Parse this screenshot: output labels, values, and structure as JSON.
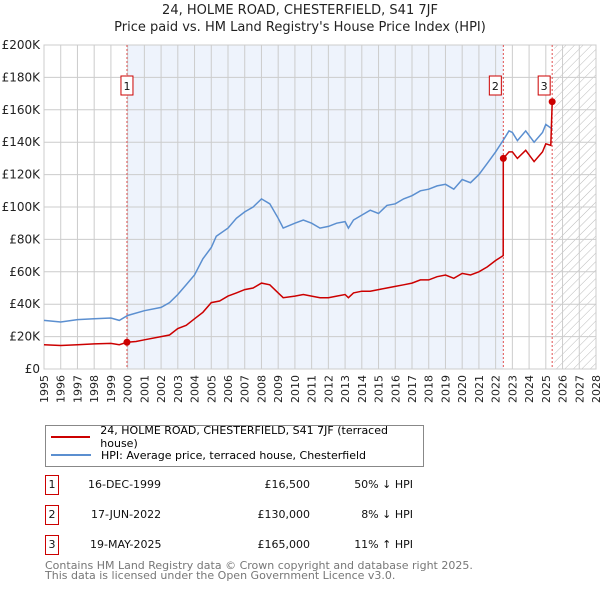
{
  "chart_data": {
    "type": "line",
    "title": "24, HOLME ROAD, CHESTERFIELD, S41 7JF",
    "subtitle": "Price paid vs. HM Land Registry's House Price Index (HPI)",
    "xlim": [
      1995,
      2028
    ],
    "ylim": [
      0,
      200000
    ],
    "x_ticks": [
      "1995",
      "1996",
      "1997",
      "1998",
      "1999",
      "2000",
      "2001",
      "2002",
      "2003",
      "2004",
      "2005",
      "2006",
      "2007",
      "2008",
      "2009",
      "2010",
      "2011",
      "2012",
      "2013",
      "2014",
      "2015",
      "2016",
      "2017",
      "2018",
      "2019",
      "2020",
      "2021",
      "2022",
      "2023",
      "2024",
      "2025",
      "2026",
      "2027",
      "2028"
    ],
    "y_ticks": [
      {
        "v": 0,
        "label": "£0"
      },
      {
        "v": 20000,
        "label": "£20K"
      },
      {
        "v": 40000,
        "label": "£40K"
      },
      {
        "v": 60000,
        "label": "£60K"
      },
      {
        "v": 80000,
        "label": "£80K"
      },
      {
        "v": 100000,
        "label": "£100K"
      },
      {
        "v": 120000,
        "label": "£120K"
      },
      {
        "v": 140000,
        "label": "£140K"
      },
      {
        "v": 160000,
        "label": "£160K"
      },
      {
        "v": 180000,
        "label": "£180K"
      },
      {
        "v": 200000,
        "label": "£200K"
      }
    ],
    "grid": true,
    "shaded_range": [
      2000.0,
      2022.46
    ],
    "hatched_from": 2025.5,
    "series": [
      {
        "name": "24, HOLME ROAD, CHESTERFIELD, S41 7JF (terraced house)",
        "color": "#cc0000",
        "points": [
          [
            1995,
            15
          ],
          [
            1996,
            14.5
          ],
          [
            1997,
            15
          ],
          [
            1998,
            15.5
          ],
          [
            1999,
            15.8
          ],
          [
            1999.5,
            15
          ],
          [
            1999.96,
            16.5
          ],
          [
            2000.5,
            17
          ],
          [
            2001,
            18
          ],
          [
            2002,
            20
          ],
          [
            2002.5,
            21
          ],
          [
            2003,
            25
          ],
          [
            2003.5,
            27
          ],
          [
            2004,
            31
          ],
          [
            2004.5,
            35
          ],
          [
            2005,
            41
          ],
          [
            2005.5,
            42
          ],
          [
            2006,
            45
          ],
          [
            2006.5,
            47
          ],
          [
            2007,
            49
          ],
          [
            2007.5,
            50
          ],
          [
            2008,
            53
          ],
          [
            2008.5,
            52
          ],
          [
            2009,
            47
          ],
          [
            2009.3,
            44
          ],
          [
            2010,
            45
          ],
          [
            2010.5,
            46
          ],
          [
            2011,
            45
          ],
          [
            2011.5,
            44
          ],
          [
            2012,
            44
          ],
          [
            2012.5,
            45
          ],
          [
            2013,
            46
          ],
          [
            2013.2,
            44
          ],
          [
            2013.5,
            47
          ],
          [
            2014,
            48
          ],
          [
            2014.5,
            48
          ],
          [
            2015,
            49
          ],
          [
            2015.5,
            50
          ],
          [
            2016,
            51
          ],
          [
            2016.5,
            52
          ],
          [
            2017,
            53
          ],
          [
            2017.5,
            55
          ],
          [
            2018,
            55
          ],
          [
            2018.5,
            57
          ],
          [
            2019,
            58
          ],
          [
            2019.5,
            56
          ],
          [
            2020,
            59
          ],
          [
            2020.5,
            58
          ],
          [
            2021,
            60
          ],
          [
            2021.5,
            63
          ],
          [
            2022,
            67
          ],
          [
            2022.45,
            70
          ],
          [
            2022.46,
            130
          ],
          [
            2022.8,
            134
          ],
          [
            2023,
            134
          ],
          [
            2023.3,
            130
          ],
          [
            2023.8,
            135
          ],
          [
            2024.3,
            128
          ],
          [
            2024.8,
            134
          ],
          [
            2025,
            139
          ],
          [
            2025.3,
            138
          ],
          [
            2025.38,
            165
          ]
        ]
      },
      {
        "name": "HPI: Average price, terraced house, Chesterfield",
        "color": "#5b8fd0",
        "points": [
          [
            1995,
            30
          ],
          [
            1996,
            29
          ],
          [
            1997,
            30.5
          ],
          [
            1998,
            31
          ],
          [
            1999,
            31.5
          ],
          [
            1999.5,
            30
          ],
          [
            2000,
            33
          ],
          [
            2001,
            36
          ],
          [
            2002,
            38
          ],
          [
            2002.5,
            41
          ],
          [
            2003,
            46
          ],
          [
            2003.5,
            52
          ],
          [
            2004,
            58
          ],
          [
            2004.5,
            68
          ],
          [
            2005,
            75
          ],
          [
            2005.3,
            82
          ],
          [
            2006,
            87
          ],
          [
            2006.5,
            93
          ],
          [
            2007,
            97
          ],
          [
            2007.5,
            100
          ],
          [
            2008,
            105
          ],
          [
            2008.5,
            102
          ],
          [
            2009,
            93
          ],
          [
            2009.3,
            87
          ],
          [
            2010,
            90
          ],
          [
            2010.5,
            92
          ],
          [
            2011,
            90
          ],
          [
            2011.5,
            87
          ],
          [
            2012,
            88
          ],
          [
            2012.5,
            90
          ],
          [
            2013,
            91
          ],
          [
            2013.2,
            87
          ],
          [
            2013.5,
            92
          ],
          [
            2014,
            95
          ],
          [
            2014.5,
            98
          ],
          [
            2015,
            96
          ],
          [
            2015.5,
            101
          ],
          [
            2016,
            102
          ],
          [
            2016.5,
            105
          ],
          [
            2017,
            107
          ],
          [
            2017.5,
            110
          ],
          [
            2018,
            111
          ],
          [
            2018.5,
            113
          ],
          [
            2019,
            114
          ],
          [
            2019.5,
            111
          ],
          [
            2020,
            117
          ],
          [
            2020.5,
            115
          ],
          [
            2021,
            120
          ],
          [
            2021.5,
            127
          ],
          [
            2022,
            134
          ],
          [
            2022.5,
            142
          ],
          [
            2022.8,
            147
          ],
          [
            2023,
            146
          ],
          [
            2023.3,
            141
          ],
          [
            2023.8,
            147
          ],
          [
            2024.3,
            140
          ],
          [
            2024.8,
            146
          ],
          [
            2025,
            151
          ],
          [
            2025.4,
            148
          ]
        ]
      }
    ],
    "sales": [
      {
        "id": "1",
        "x": 1999.96,
        "value": 16500,
        "date": "16-DEC-1999",
        "price": "£16,500",
        "hpi": "50% ↓ HPI"
      },
      {
        "id": "2",
        "x": 2022.46,
        "value": 130000,
        "date": "17-JUN-2022",
        "price": "£130,000",
        "hpi": "8% ↓ HPI"
      },
      {
        "id": "3",
        "x": 2025.38,
        "value": 165000,
        "date": "19-MAY-2025",
        "price": "£165,000",
        "hpi": "11% ↑ HPI"
      }
    ]
  },
  "legend": {
    "red": "24, HOLME ROAD, CHESTERFIELD, S41 7JF (terraced house)",
    "blue": "HPI: Average price, terraced house, Chesterfield"
  },
  "footer": {
    "line1": "Contains HM Land Registry data © Crown copyright and database right 2025.",
    "line2": "This data is licensed under the Open Government Licence v3.0."
  }
}
